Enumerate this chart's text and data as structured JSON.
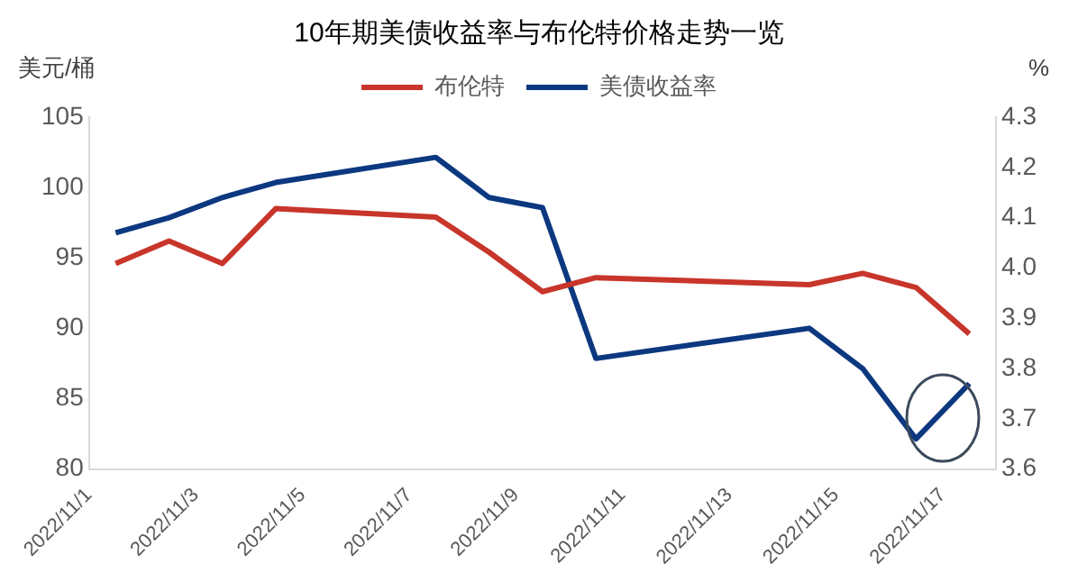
{
  "chart_data": {
    "type": "line",
    "title": "10年期美债收益率与布伦特价格走势一览",
    "ylabel": "美元/桶",
    "y2label": "%",
    "x": [
      "2022-11-01T12:00",
      "2022-11-02T12:00",
      "2022-11-03T12:00",
      "2022-11-04T12:00",
      "2022-11-07T12:00",
      "2022-11-08T12:00",
      "2022-11-09T12:00",
      "2022-11-10T12:00",
      "2022-11-14T12:00",
      "2022-11-15T12:00",
      "2022-11-16T12:00",
      "2022-11-17T12:00"
    ],
    "series": [
      {
        "name": "布伦特",
        "color": "#c8352a",
        "values": [
          94.6,
          96.2,
          94.6,
          98.5,
          97.9,
          95.4,
          92.6,
          93.6,
          93.1,
          93.9,
          92.9,
          89.6
        ]
      },
      {
        "name": "美债收益率",
        "color": "#0c3880",
        "axis": "y2",
        "values": [
          4.07,
          4.1,
          4.14,
          4.17,
          4.22,
          4.14,
          4.12,
          3.82,
          3.88,
          3.8,
          3.66,
          3.77
        ]
      }
    ],
    "xlim": [
      "2022-11-01",
      "2022-11-18"
    ],
    "xticks": [
      {
        "value": "2022-11-01",
        "label": "2022/11/1"
      },
      {
        "value": "2022-11-03",
        "label": "2022/11/3"
      },
      {
        "value": "2022-11-05",
        "label": "2022/11/5"
      },
      {
        "value": "2022-11-07",
        "label": "2022/11/7"
      },
      {
        "value": "2022-11-09",
        "label": "2022/11/9"
      },
      {
        "value": "2022-11-11",
        "label": "2022/11/11"
      },
      {
        "value": "2022-11-13",
        "label": "2022/11/13"
      },
      {
        "value": "2022-11-15",
        "label": "2022/11/15"
      },
      {
        "value": "2022-11-17",
        "label": "2022/11/17"
      }
    ],
    "ylim": [
      80,
      105
    ],
    "yticks": [
      80,
      85,
      90,
      95,
      100,
      105
    ],
    "y2lim": [
      3.6,
      4.3
    ],
    "y2ticks": [
      {
        "value": 3.6,
        "label": "3.6"
      },
      {
        "value": 3.7,
        "label": "3.7"
      },
      {
        "value": 3.8,
        "label": "3.8"
      },
      {
        "value": 3.9,
        "label": "3.9"
      },
      {
        "value": 4.0,
        "label": "4.0"
      },
      {
        "value": 4.1,
        "label": "4.1"
      },
      {
        "value": 4.2,
        "label": "4.2"
      },
      {
        "value": 4.3,
        "label": "4.3"
      }
    ],
    "grid": false,
    "legend": "top right",
    "marker": "none",
    "line_style": "solid"
  }
}
